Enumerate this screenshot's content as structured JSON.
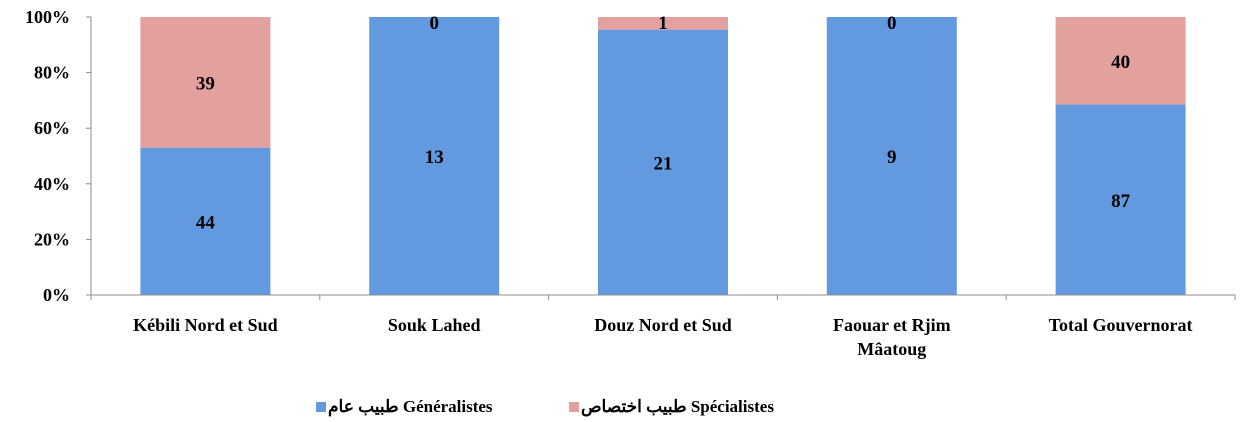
{
  "chart_data": {
    "type": "bar",
    "stacked": "percent",
    "categories": [
      [
        "Kébili Nord et Sud"
      ],
      [
        "Souk Lahed"
      ],
      [
        "Douz Nord et Sud"
      ],
      [
        "Faouar et Rjim",
        "Mâatoug"
      ],
      [
        "Total Gouvernorat"
      ]
    ],
    "series": [
      {
        "name": "طبيب عام Généralistes",
        "values": [
          44,
          13,
          21,
          9,
          87
        ],
        "color": "#6399de"
      },
      {
        "name": "طبيب اختصاص Spécialistes",
        "values": [
          39,
          0,
          1,
          0,
          40
        ],
        "color": "#e2a09f"
      }
    ],
    "yticks": [
      "0%",
      "20%",
      "40%",
      "60%",
      "80%",
      "100%"
    ],
    "ylim": [
      0,
      100
    ],
    "grid": false,
    "legend": "bottom",
    "title": "",
    "xlabel": "",
    "ylabel": ""
  }
}
